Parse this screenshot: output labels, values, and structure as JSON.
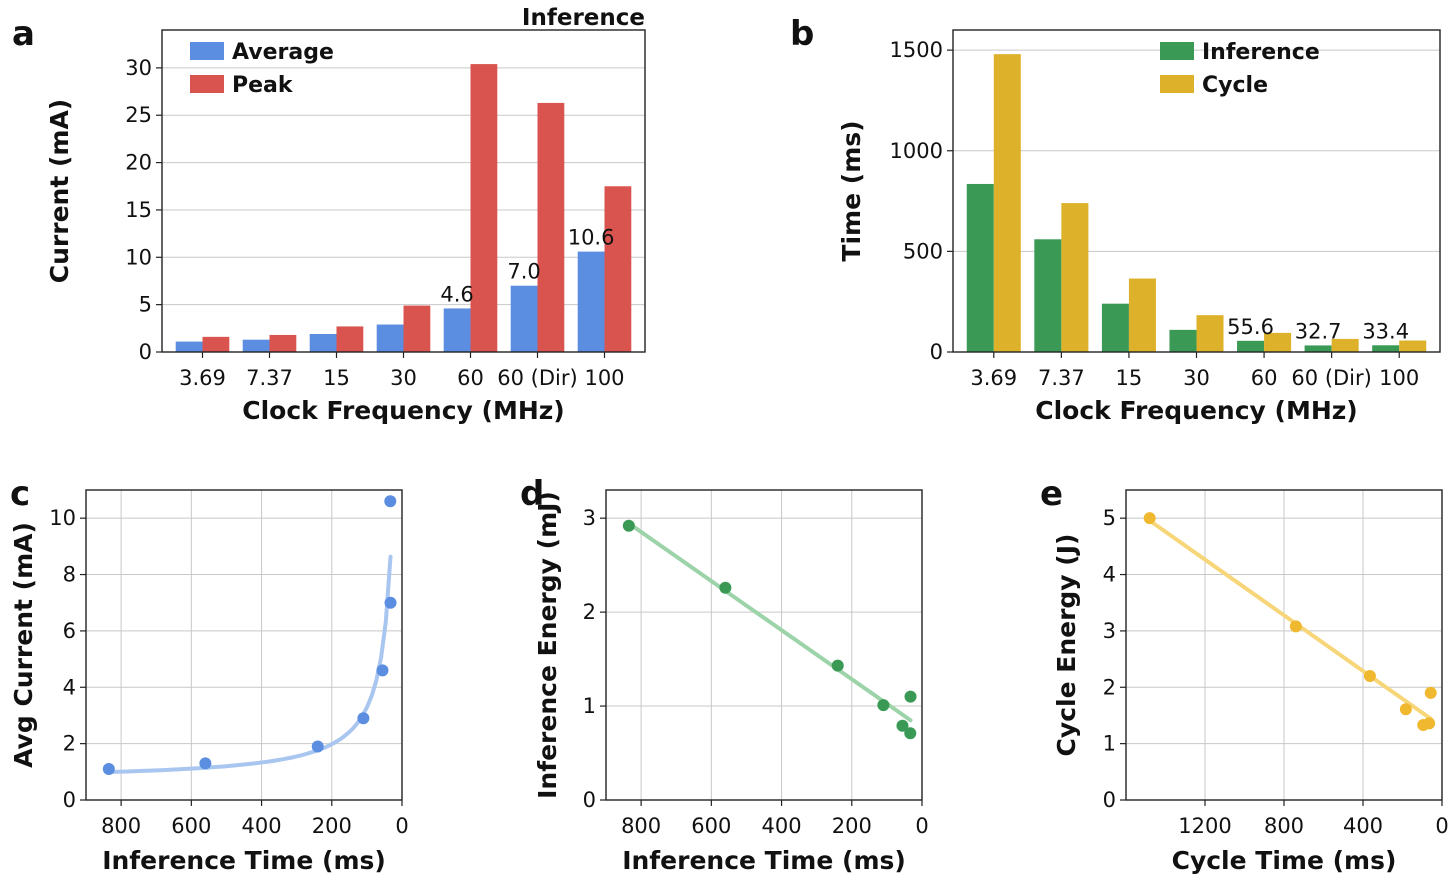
{
  "chart_data": [
    {
      "panel": "a",
      "type": "bar",
      "subtitle": "Inference",
      "xlabel": "Clock Frequency (MHz)",
      "ylabel": "Current (mA)",
      "categories": [
        "3.69",
        "7.37",
        "15",
        "30",
        "60",
        "60 (Dir)",
        "100"
      ],
      "yticks": [
        0,
        5,
        10,
        15,
        20,
        25,
        30
      ],
      "ylim": [
        0,
        34
      ],
      "grid": true,
      "legend_position": "top-left",
      "series": [
        {
          "name": "Average",
          "color": "#5b8ee0",
          "values": [
            1.1,
            1.3,
            1.9,
            2.9,
            4.6,
            7.0,
            10.6
          ]
        },
        {
          "name": "Peak",
          "color": "#d9534f",
          "values": [
            1.6,
            1.8,
            2.7,
            4.9,
            30.4,
            26.3,
            17.5
          ]
        }
      ],
      "annotations": [
        {
          "series": 0,
          "index": 4,
          "text": "4.6"
        },
        {
          "series": 0,
          "index": 5,
          "text": "7.0"
        },
        {
          "series": 0,
          "index": 6,
          "text": "10.6"
        }
      ]
    },
    {
      "panel": "b",
      "type": "bar",
      "xlabel": "Clock Frequency (MHz)",
      "ylabel": "Time (ms)",
      "categories": [
        "3.69",
        "7.37",
        "15",
        "30",
        "60",
        "60 (Dir)",
        "100"
      ],
      "yticks": [
        0,
        500,
        1000,
        1500
      ],
      "ylim": [
        0,
        1600
      ],
      "grid": true,
      "legend_position": "top-right",
      "series": [
        {
          "name": "Inference",
          "color": "#3a9a55",
          "values": [
            835,
            560,
            240,
            110,
            55.6,
            32.7,
            33.4
          ]
        },
        {
          "name": "Cycle",
          "color": "#ddb12a",
          "values": [
            1480,
            740,
            365,
            183,
            95,
            65,
            57
          ]
        }
      ],
      "annotations": [
        {
          "series": 0,
          "index": 4,
          "text": "55.6"
        },
        {
          "series": 0,
          "index": 5,
          "text": "32.7"
        },
        {
          "series": 0,
          "index": 6,
          "text": "33.4"
        }
      ]
    },
    {
      "panel": "c",
      "type": "scatter",
      "xlabel": "Inference Time (ms)",
      "ylabel": "Avg Current (mA)",
      "xlim": [
        900,
        0
      ],
      "ylim": [
        0,
        11
      ],
      "xticks": [
        800,
        600,
        400,
        200,
        0
      ],
      "yticks": [
        0,
        2,
        4,
        6,
        8,
        10
      ],
      "grid": true,
      "color": "#5b8ee0",
      "fit_color": "#a9c6f0",
      "fit": "curve",
      "points": [
        [
          835,
          1.1
        ],
        [
          560,
          1.3
        ],
        [
          240,
          1.9
        ],
        [
          110,
          2.9
        ],
        [
          55.6,
          4.6
        ],
        [
          32.7,
          7.0
        ],
        [
          33.4,
          10.6
        ]
      ]
    },
    {
      "panel": "d",
      "type": "scatter",
      "xlabel": "Inference Time (ms)",
      "ylabel": "Inference Energy (mJ)",
      "xlim": [
        900,
        0
      ],
      "ylim": [
        0,
        3.3
      ],
      "xticks": [
        800,
        600,
        400,
        200,
        0
      ],
      "yticks": [
        0,
        1,
        2,
        3
      ],
      "grid": true,
      "color": "#3a9a55",
      "fit_color": "#9dd3a8",
      "fit": "linear",
      "points": [
        [
          835,
          2.92
        ],
        [
          560,
          2.26
        ],
        [
          240,
          1.43
        ],
        [
          110,
          1.01
        ],
        [
          55.6,
          0.79
        ],
        [
          32.7,
          1.1
        ],
        [
          33.4,
          0.71
        ]
      ]
    },
    {
      "panel": "e",
      "type": "scatter",
      "xlabel": "Cycle Time (ms)",
      "ylabel": "Cycle Energy (J)",
      "xlim": [
        1600,
        0
      ],
      "ylim": [
        0,
        5.5
      ],
      "xticks": [
        1200,
        800,
        400,
        0
      ],
      "yticks": [
        0,
        1,
        2,
        3,
        4,
        5
      ],
      "grid": true,
      "color": "#f0b82e",
      "fit_color": "#f7d67a",
      "fit": "linear",
      "points": [
        [
          1480,
          5.0
        ],
        [
          740,
          3.08
        ],
        [
          365,
          2.2
        ],
        [
          183,
          1.61
        ],
        [
          95,
          1.33
        ],
        [
          65,
          1.36
        ],
        [
          57,
          1.9
        ]
      ]
    }
  ]
}
